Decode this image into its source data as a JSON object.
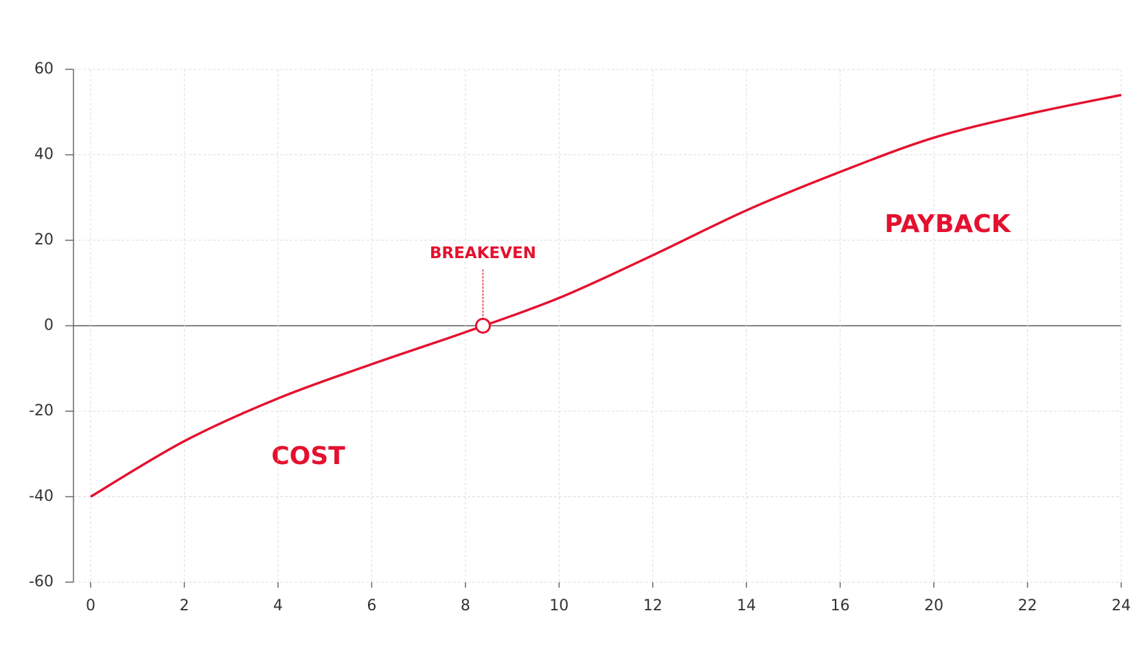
{
  "chart_data": {
    "type": "line",
    "categories": [
      "0",
      "2",
      "4",
      "6",
      "8",
      "10",
      "12",
      "14",
      "16",
      "20",
      "22",
      "24"
    ],
    "series": [
      {
        "color": "#e4112e",
        "values": [
          -40,
          -27,
          -17,
          -9,
          -1.5,
          6.5,
          16.5,
          27,
          36,
          44,
          49.5,
          54
        ]
      }
    ],
    "ylim": [
      -60,
      60
    ],
    "yticks": [
      -60,
      -40,
      -20,
      0,
      20,
      40,
      60
    ],
    "grid": true,
    "annotations": {
      "breakeven": {
        "label": "BREAKEVEN",
        "value": 0
      },
      "cost": "COST",
      "payback": "PAYBACK"
    }
  }
}
